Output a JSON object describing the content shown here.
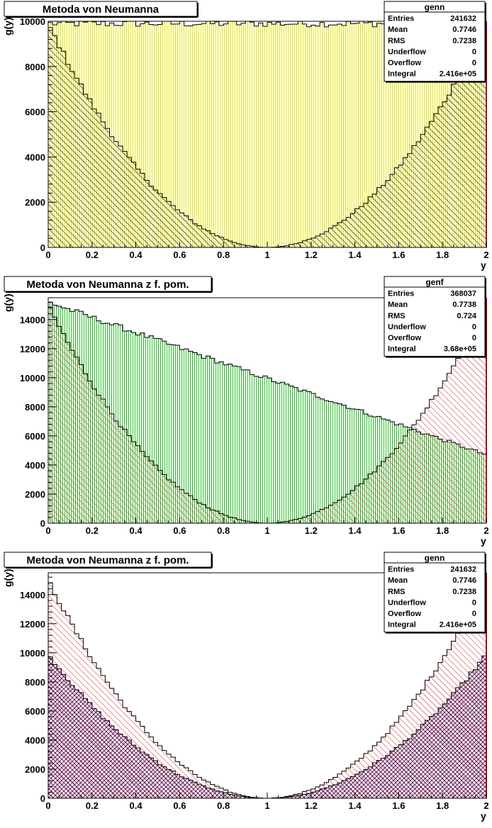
{
  "chart_data": [
    {
      "type": "bar",
      "title": "Metoda von Neumanna",
      "xlabel": "y",
      "ylabel": "g(y)",
      "xlim": [
        0,
        2
      ],
      "ylim": [
        0,
        10000
      ],
      "xticks": [
        "0",
        "0.2",
        "0.4",
        "0.6",
        "0.8",
        "1",
        "1.2",
        "1.4",
        "1.6",
        "1.8",
        "2"
      ],
      "yticks": [
        "0",
        "2000",
        "4000",
        "6000",
        "8000",
        "10000"
      ],
      "stats": {
        "name": "genn",
        "rows": [
          {
            "label": "Entries",
            "value": "241632"
          },
          {
            "label": "Mean",
            "value": "0.7746"
          },
          {
            "label": "RMS",
            "value": "0.7238"
          },
          {
            "label": "Underflow",
            "value": "0"
          },
          {
            "label": "Overflow",
            "value": "0"
          },
          {
            "label": "Integral",
            "value": "2.416e+05"
          }
        ]
      },
      "series": [
        {
          "role": "uniform envelope",
          "fill": "yellow-vertical-hatch",
          "color": "#ffff66",
          "level": 9900,
          "noise": 150
        },
        {
          "role": "accepted distribution",
          "fill": "black-diagonal-hatch",
          "color": "#000000",
          "function": "peak*(1-y)^2",
          "peak": 9900,
          "noise": 140
        }
      ]
    },
    {
      "type": "bar",
      "title": "Metoda von Neumanna z f. pom.",
      "xlabel": "y",
      "ylabel": "g(y)",
      "xlim": [
        0,
        2
      ],
      "ylim": [
        0,
        15500
      ],
      "xticks": [
        "0",
        "0.2",
        "0.4",
        "0.6",
        "0.8",
        "1",
        "1.2",
        "1.4",
        "1.6",
        "1.8",
        "2"
      ],
      "yticks": [
        "0",
        "2000",
        "4000",
        "6000",
        "8000",
        "10000",
        "12000",
        "14000"
      ],
      "stats": {
        "name": "genf",
        "rows": [
          {
            "label": "Entries",
            "value": "368037"
          },
          {
            "label": "Mean",
            "value": "0.7738"
          },
          {
            "label": "RMS",
            "value": "0.724"
          },
          {
            "label": "Underflow",
            "value": "0"
          },
          {
            "label": "Overflow",
            "value": "0"
          },
          {
            "label": "Integral",
            "value": "3.68e+05"
          }
        ]
      },
      "series": [
        {
          "role": "auxiliary function envelope",
          "fill": "green-vertical-hatch",
          "color": "#33cc33",
          "function": "linear 15200 at y=0 to 4700 at y=2",
          "noise": 150
        },
        {
          "role": "accepted distribution",
          "fill": "red-diagonal-hatch",
          "color": "#cc3333",
          "function": "peak*(1-y)^2",
          "peak": 15000,
          "noise": 180
        }
      ]
    },
    {
      "type": "bar",
      "title": "Metoda von Neumanna z f. pom.",
      "xlabel": "y",
      "ylabel": "g(y)",
      "xlim": [
        0,
        2
      ],
      "ylim": [
        0,
        15500
      ],
      "xticks": [
        "0",
        "0.2",
        "0.4",
        "0.6",
        "0.8",
        "1",
        "1.2",
        "1.4",
        "1.6",
        "1.8",
        "2"
      ],
      "yticks": [
        "0",
        "2000",
        "4000",
        "6000",
        "8000",
        "10000",
        "12000",
        "14000"
      ],
      "stats": {
        "name": "genn",
        "rows": [
          {
            "label": "Entries",
            "value": "241632"
          },
          {
            "label": "Mean",
            "value": "0.7746"
          },
          {
            "label": "RMS",
            "value": "0.7238"
          },
          {
            "label": "Underflow",
            "value": "0"
          },
          {
            "label": "Overflow",
            "value": "0"
          },
          {
            "label": "Integral",
            "value": "2.416e+05"
          }
        ]
      },
      "series": [
        {
          "role": "genf distribution",
          "fill": "red-diagonal-hatch",
          "color": "#cc3333",
          "function": "peak*(1-y)^2",
          "peak": 15000,
          "noise": 180
        },
        {
          "role": "genn distribution",
          "fill": "purple-cross-hatch",
          "color": "#660066",
          "function": "peak*(1-y)^2",
          "peak": 9900,
          "noise": 140
        }
      ]
    }
  ]
}
